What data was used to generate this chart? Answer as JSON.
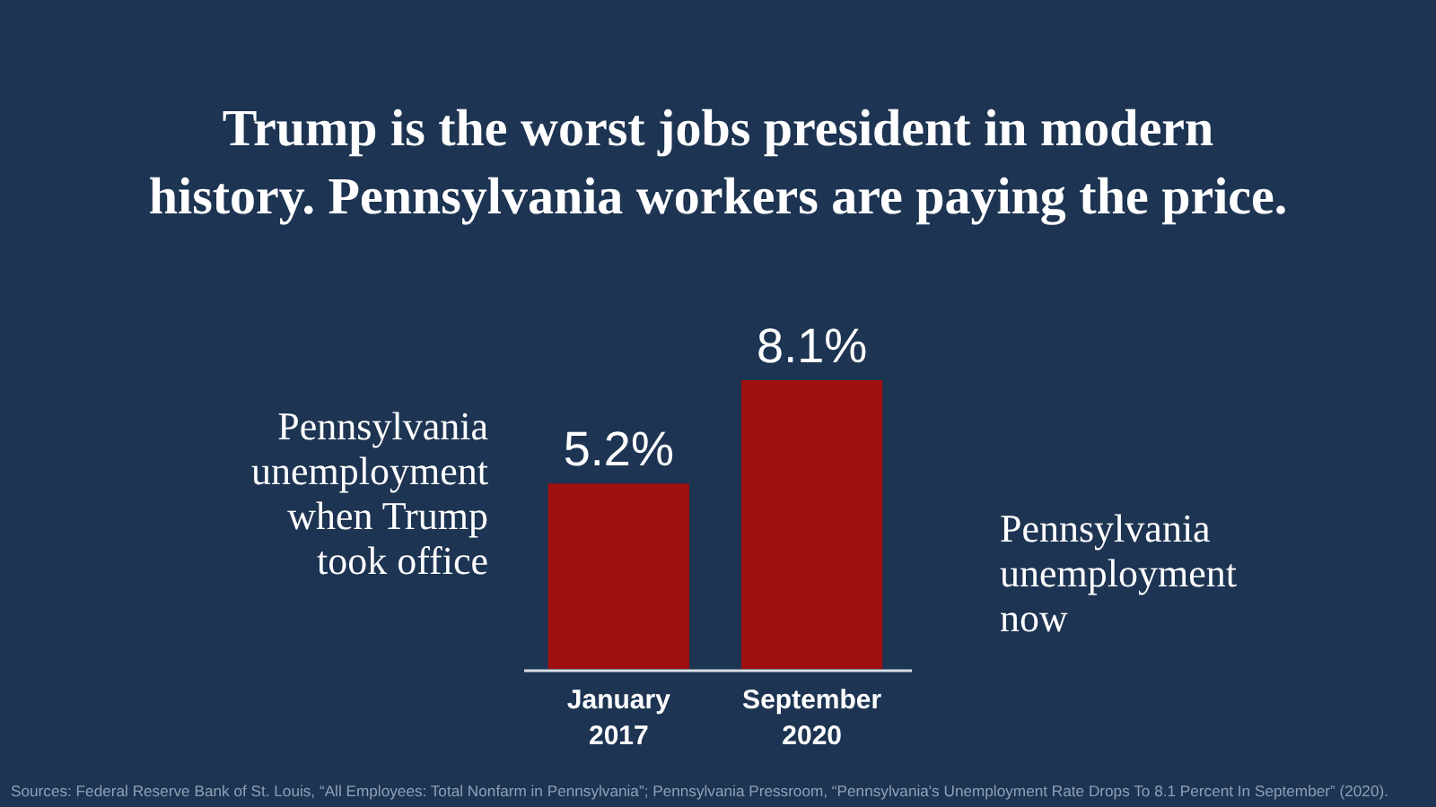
{
  "chart_data": {
    "type": "bar",
    "title": "Trump is the worst jobs president in modern\nhistory. Pennsylvania workers are paying the price.",
    "categories": [
      "January\n2017",
      "September\n2020"
    ],
    "values": [
      5.2,
      8.1
    ],
    "color": "#a01010",
    "value_labels": [
      "5.2%",
      "8.1%"
    ],
    "annotations": [
      "Pennsylvania\nunemployment\nwhen Trump\ntook office",
      "Pennsylvania\nunemployment\nnow",
      "Sources: Federal Reserve Bank of St. Louis, “All Employees: Total Nonfarm in Pennsylvania”; Pennsylvania Pressroom, “Pennsylvania's Unemployment Rate Drops To 8.1 Percent In September” (2020)."
    ]
  }
}
